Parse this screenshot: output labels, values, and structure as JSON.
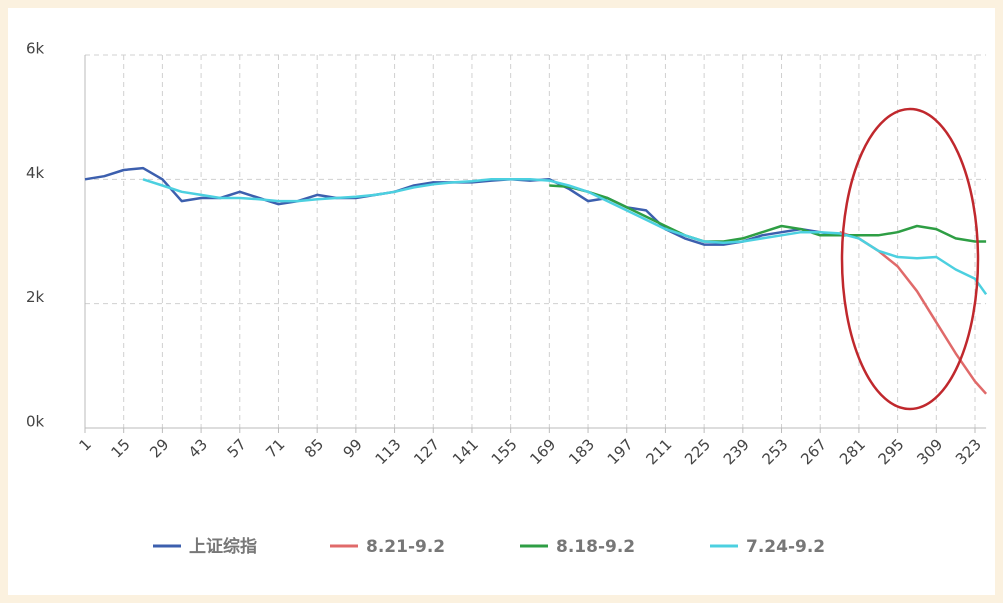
{
  "chart_data": {
    "type": "line",
    "x": [
      1,
      8,
      15,
      22,
      29,
      36,
      43,
      50,
      57,
      64,
      71,
      78,
      85,
      92,
      99,
      106,
      113,
      120,
      127,
      134,
      141,
      148,
      155,
      162,
      169,
      176,
      183,
      190,
      197,
      204,
      211,
      218,
      225,
      232,
      239,
      246,
      253,
      260,
      267,
      274,
      281,
      288,
      295,
      302,
      309,
      316,
      323,
      327
    ],
    "xlim": [
      1,
      327
    ],
    "xticks": [
      1,
      15,
      29,
      43,
      57,
      71,
      85,
      99,
      113,
      127,
      141,
      155,
      169,
      183,
      197,
      211,
      225,
      239,
      253,
      267,
      281,
      295,
      309,
      323
    ],
    "ylim": [
      0,
      6000
    ],
    "yticks": [
      {
        "value": 0,
        "label": "0k"
      },
      {
        "value": 2000,
        "label": "2k"
      },
      {
        "value": 4000,
        "label": "4k"
      },
      {
        "value": 6000,
        "label": "6k"
      }
    ],
    "grid": true,
    "legend": "bottom",
    "series": [
      {
        "name": "上证综指",
        "color": "#3c5fae",
        "values": [
          4000,
          4050,
          4150,
          4180,
          4000,
          3650,
          3700,
          3700,
          3800,
          3700,
          3600,
          3650,
          3750,
          3700,
          3700,
          3750,
          3800,
          3900,
          3950,
          3950,
          3950,
          3980,
          4000,
          3980,
          4000,
          3850,
          3650,
          3700,
          3550,
          3500,
          3200,
          3050,
          2950,
          2950,
          3000,
          3100,
          3150,
          3200,
          3150,
          3100,
          3100,
          null,
          null,
          null,
          null,
          null,
          null,
          null
        ]
      },
      {
        "name": "8.21-9.2",
        "color": "#e06a6a",
        "values": [
          null,
          null,
          null,
          null,
          null,
          null,
          null,
          null,
          null,
          null,
          null,
          null,
          null,
          null,
          null,
          null,
          null,
          null,
          null,
          null,
          null,
          null,
          null,
          null,
          null,
          null,
          null,
          null,
          null,
          null,
          null,
          null,
          null,
          null,
          null,
          null,
          null,
          null,
          null,
          3150,
          3050,
          2850,
          2600,
          2200,
          1700,
          1200,
          750,
          550
        ]
      },
      {
        "name": "8.18-9.2",
        "color": "#2e9e44",
        "values": [
          null,
          null,
          null,
          null,
          null,
          null,
          null,
          null,
          null,
          null,
          null,
          null,
          null,
          null,
          null,
          null,
          null,
          null,
          null,
          null,
          null,
          null,
          null,
          null,
          3900,
          3880,
          3800,
          3700,
          3550,
          3400,
          3250,
          3100,
          3000,
          3000,
          3050,
          3150,
          3250,
          3200,
          3100,
          3100,
          3100,
          3100,
          3150,
          3250,
          3200,
          3050,
          3000,
          3000
        ]
      },
      {
        "name": "7.24-9.2",
        "color": "#4cd0e0",
        "values": [
          null,
          null,
          null,
          4000,
          3900,
          3800,
          3750,
          3700,
          3700,
          3680,
          3650,
          3650,
          3680,
          3700,
          3720,
          3750,
          3800,
          3870,
          3920,
          3950,
          3970,
          4000,
          4000,
          4000,
          3980,
          3900,
          3800,
          3650,
          3500,
          3350,
          3200,
          3100,
          3000,
          2980,
          3000,
          3050,
          3100,
          3150,
          3150,
          3130,
          3050,
          2850,
          2750,
          2730,
          2750,
          2550,
          2400,
          2150
        ]
      }
    ]
  }
}
